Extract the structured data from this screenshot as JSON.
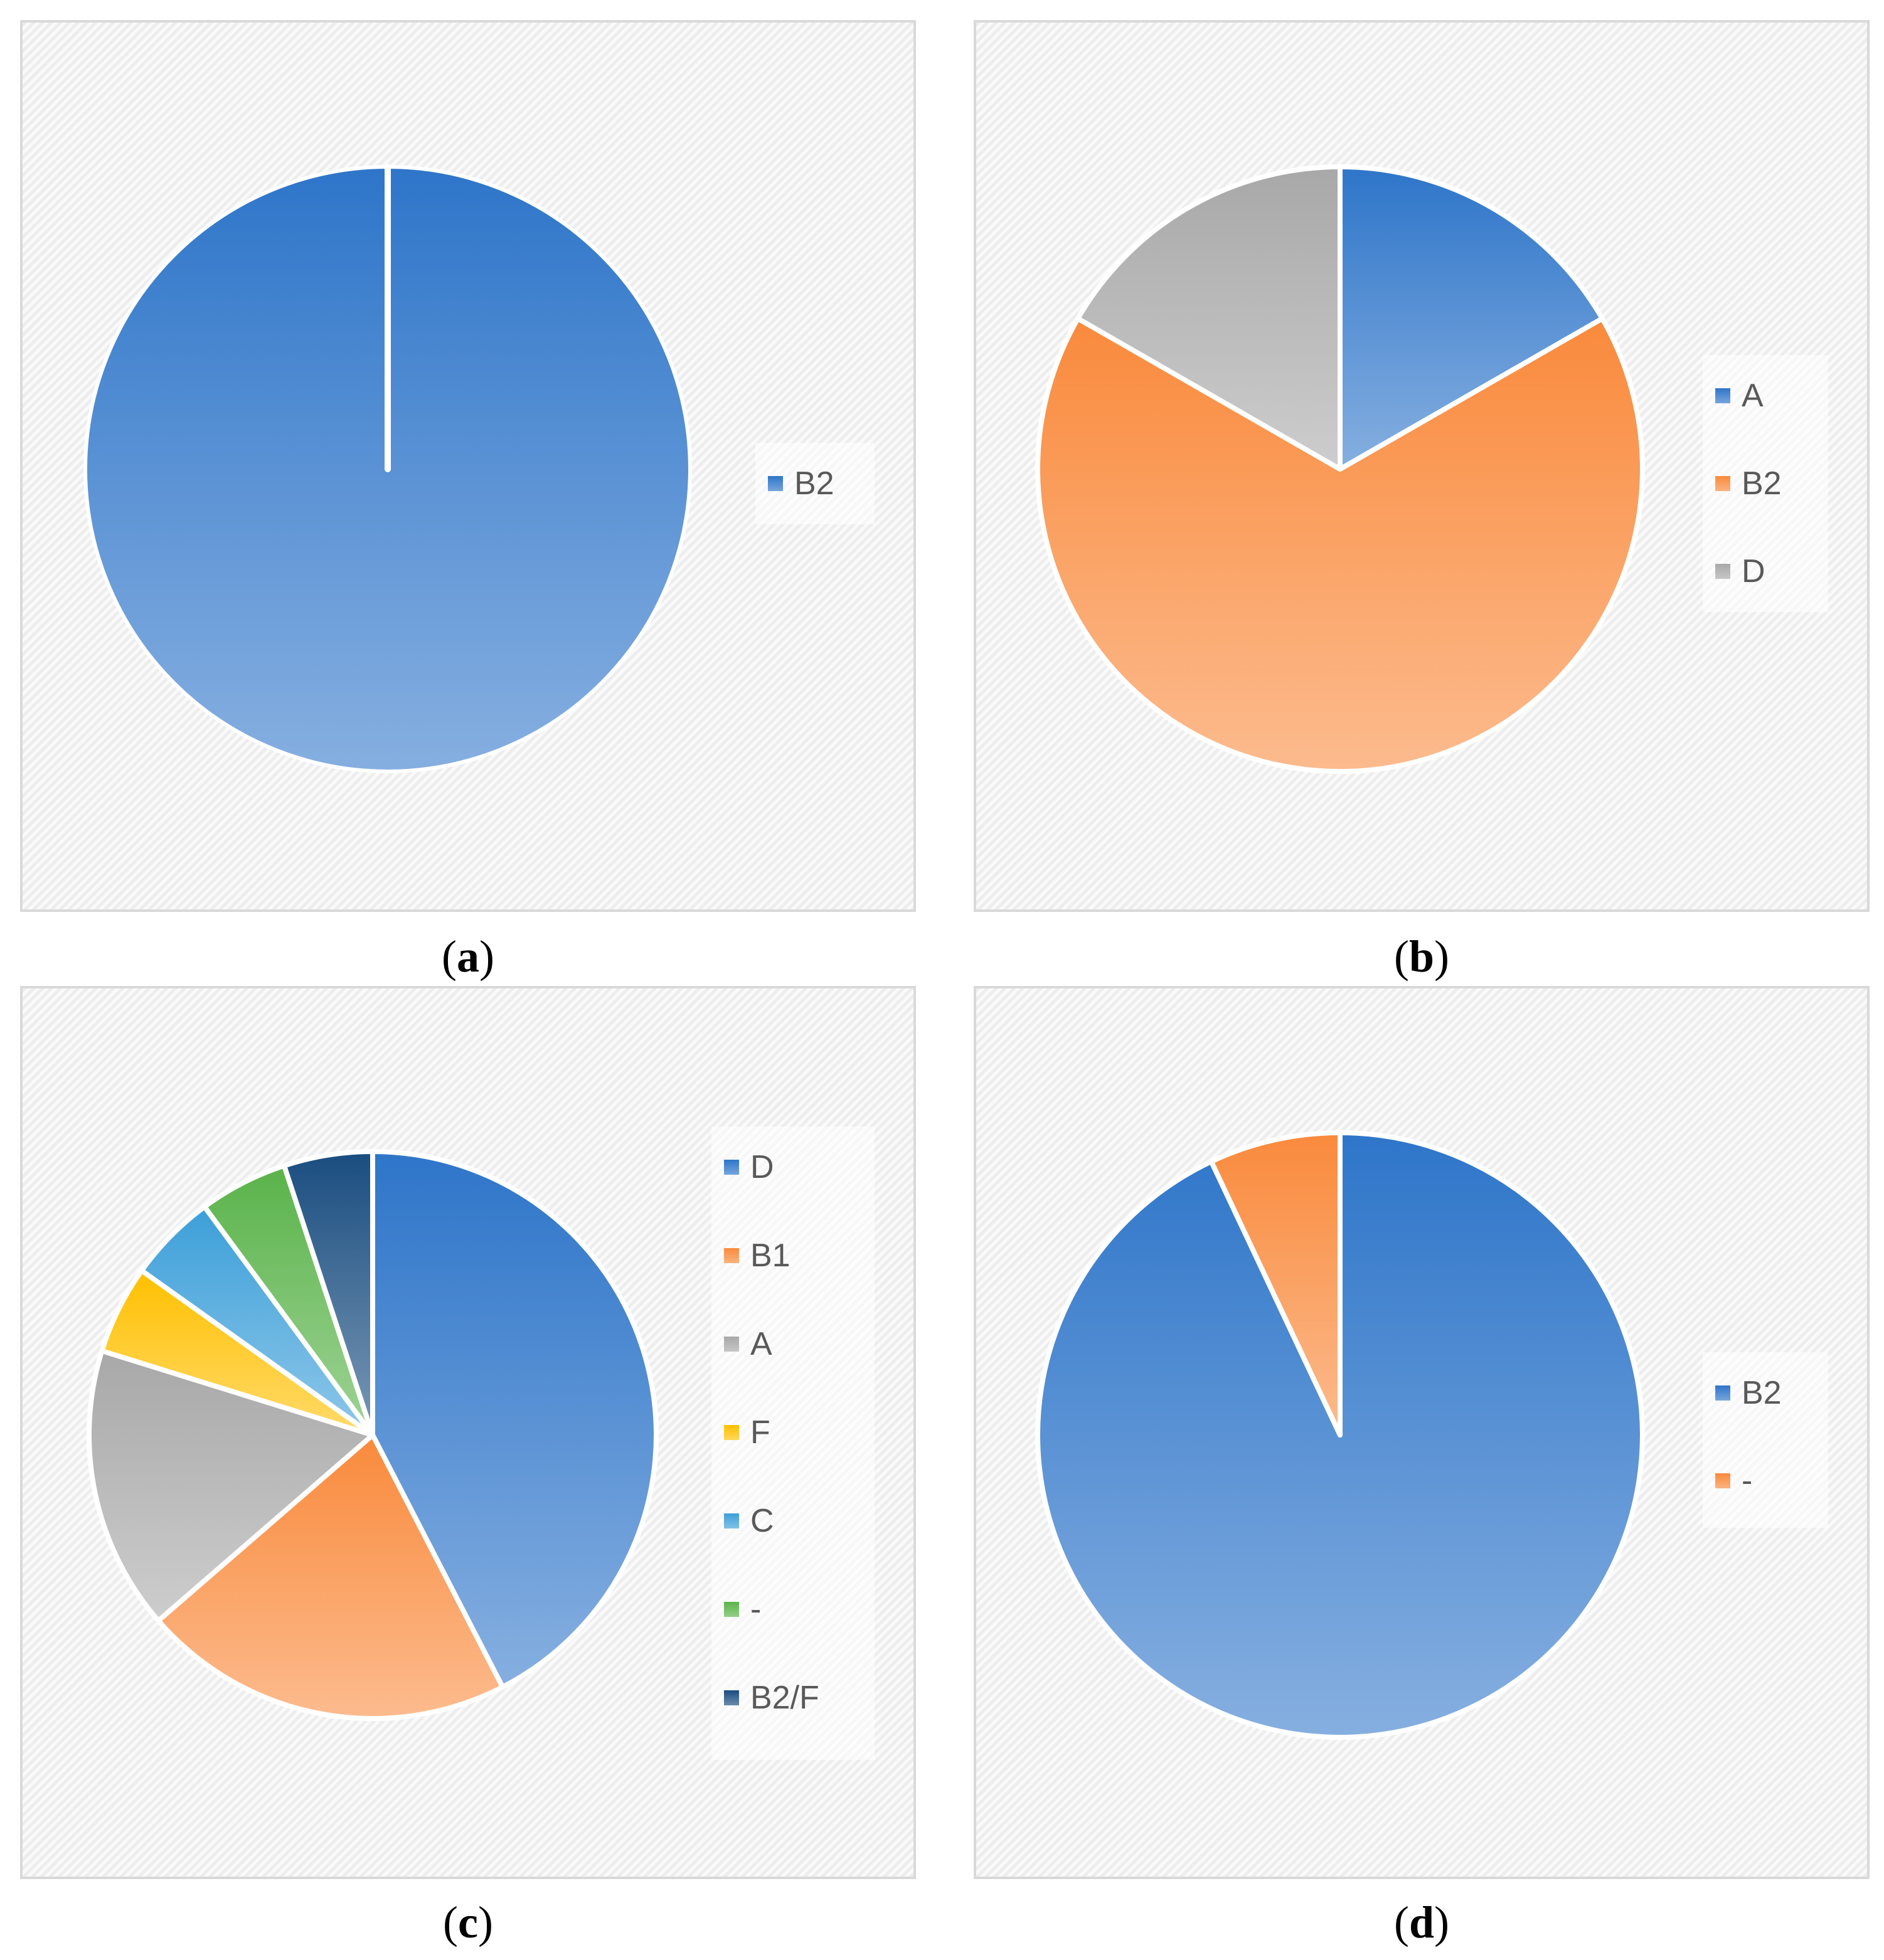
{
  "chart_data": [
    {
      "id": "a",
      "type": "pie",
      "caption_label": "a",
      "slices": [
        {
          "label": "B2",
          "value": 100,
          "color": "#2e75c9"
        }
      ]
    },
    {
      "id": "b",
      "type": "pie",
      "caption_label": "b",
      "slices": [
        {
          "label": "A",
          "value": 16.7,
          "color": "#2e75c9"
        },
        {
          "label": "B2",
          "value": 66.6,
          "color": "#f98a3c"
        },
        {
          "label": "D",
          "value": 16.7,
          "color": "#a8a8a8"
        }
      ]
    },
    {
      "id": "c",
      "type": "pie",
      "caption_label": "c",
      "slices": [
        {
          "label": "D",
          "value": 42,
          "color": "#2e75c9"
        },
        {
          "label": "B1",
          "value": 21,
          "color": "#f98a3c"
        },
        {
          "label": "A",
          "value": 16,
          "color": "#a8a8a8"
        },
        {
          "label": "F",
          "value": 5,
          "color": "#ffc000"
        },
        {
          "label": "C",
          "value": 5,
          "color": "#3c9fd9"
        },
        {
          "label": "-",
          "value": 5,
          "color": "#5ab34a"
        },
        {
          "label": "B2/F",
          "value": 5,
          "color": "#1a4d80"
        }
      ]
    },
    {
      "id": "d",
      "type": "pie",
      "caption_label": "d",
      "slices": [
        {
          "label": "B2",
          "value": 93,
          "color": "#2e75c9"
        },
        {
          "label": "-",
          "value": 7,
          "color": "#f98a3c"
        }
      ]
    }
  ]
}
